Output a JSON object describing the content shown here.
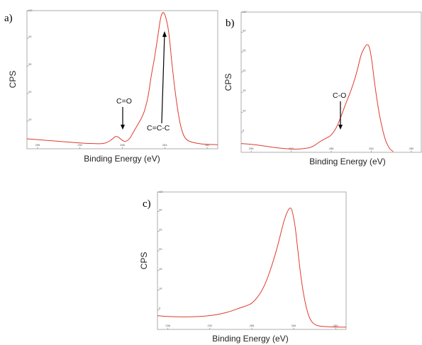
{
  "chart_data": [
    {
      "type": "line",
      "panel": "a)",
      "ylabel": "CPS",
      "xlabel": "Binding Energy (eV)",
      "multiplier": "x10^3",
      "xlim": [
        297,
        279
      ],
      "ylim": [
        0,
        50
      ],
      "xticks": [
        296,
        292,
        288,
        284,
        280
      ],
      "yticks": [
        10,
        20,
        30,
        40,
        50
      ],
      "series": [
        {
          "x": [
            297,
            296,
            295,
            294,
            293,
            292,
            291,
            290,
            289.5,
            289,
            288.7,
            288.5,
            288.3,
            288,
            287.7,
            287.3,
            287,
            286.5,
            286,
            285.7,
            285.5,
            285.3,
            285,
            284.8,
            284.6,
            284.4,
            284.2,
            284,
            283.7,
            283.5,
            283.3,
            283,
            282.7,
            282.4,
            282,
            281,
            280,
            279
          ],
          "y": [
            3.6,
            3.3,
            3.0,
            2.7,
            2.4,
            2.1,
            1.9,
            1.8,
            2.1,
            3.3,
            4.4,
            4.5,
            4.0,
            3.0,
            2.5,
            3.6,
            5.8,
            9.0,
            12.5,
            16.5,
            20.5,
            26,
            32,
            37,
            42,
            47.5,
            49.5,
            49,
            44.5,
            38,
            30,
            20,
            12,
            6.5,
            3.0,
            1.9,
            1.6,
            1.5
          ]
        }
      ],
      "annotations": [
        "C=O",
        "C=C-C"
      ]
    },
    {
      "type": "line",
      "panel": "b)",
      "ylabel": "CPS",
      "xlabel": "Binding Energy (eV)",
      "multiplier": "x10^3",
      "xlim": [
        297,
        279
      ],
      "ylim": [
        0,
        35
      ],
      "xticks": [
        296,
        292,
        288,
        284,
        280
      ],
      "yticks": [
        5,
        10,
        15,
        20,
        25,
        30,
        35
      ],
      "series": [
        {
          "x": [
            297,
            296,
            295,
            294,
            293,
            292,
            291,
            290,
            289.5,
            289,
            288.5,
            288,
            287.5,
            287,
            286.5,
            286,
            285.5,
            285.2,
            285,
            284.8,
            284.6,
            284.4,
            284.2,
            284,
            283.8,
            283.6,
            283.3,
            283,
            282.6,
            282.2,
            282,
            281.8
          ],
          "y": [
            2.2,
            2.0,
            1.7,
            1.3,
            1.0,
            0.8,
            0.8,
            1.2,
            2.0,
            2.9,
            3.5,
            4.2,
            6.0,
            9.0,
            12.5,
            15.5,
            19.5,
            22.5,
            24.5,
            25.5,
            26.5,
            27,
            26.5,
            24,
            20,
            16,
            11,
            7,
            3,
            1,
            0.5,
            0.2
          ]
        }
      ],
      "annotations": [
        "C-O"
      ]
    },
    {
      "type": "line",
      "panel": "c)",
      "ylabel": "CPS",
      "xlabel": "Binding Energy (eV)",
      "multiplier": "x10^3",
      "xlim": [
        297,
        279
      ],
      "ylim": [
        0,
        35
      ],
      "xticks": [
        296,
        292,
        288,
        284,
        280
      ],
      "yticks": [
        5,
        10,
        15,
        20,
        25,
        30,
        35
      ],
      "series": [
        {
          "x": [
            297,
            296,
            295,
            294,
            293,
            292,
            291,
            290,
            289,
            288.5,
            288,
            287.5,
            287,
            286.5,
            286,
            285.5,
            285,
            284.7,
            284.4,
            284.2,
            284,
            283.8,
            283.6,
            283.3,
            283,
            282.7,
            282.4,
            282,
            281.5,
            281,
            280,
            279
          ],
          "y": [
            3.5,
            3.3,
            3.2,
            3.2,
            3.3,
            3.5,
            3.9,
            4.6,
            5.6,
            6.0,
            6.6,
            8.0,
            10.0,
            13.0,
            17.0,
            21.5,
            27.0,
            29.5,
            31.0,
            30.8,
            28.5,
            25.0,
            20.0,
            13.0,
            8.0,
            4.5,
            2.3,
            1.2,
            0.8,
            0.7,
            0.6,
            0.6
          ]
        }
      ],
      "annotations": []
    }
  ],
  "labels": {
    "a_panel": "a)",
    "b_panel": "b)",
    "c_panel": "c)",
    "a_ylabel": "CPS",
    "b_ylabel": "CPS",
    "c_ylabel": "CPS",
    "a_xlabel": "Binding Energy (eV)",
    "b_xlabel": "Binding Energy (eV)",
    "c_xlabel": "Binding Energy (eV)",
    "a_mult": "x10",
    "b_mult": "x10",
    "c_mult": "x10",
    "a_annot_co": "C=O",
    "a_annot_ccc": "C=C-C",
    "b_annot_co": "C-O"
  },
  "colors": {
    "curve": "#e03a2f",
    "frame": "#9a9a9a"
  }
}
